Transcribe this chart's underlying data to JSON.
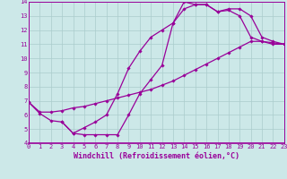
{
  "xlabel": "Windchill (Refroidissement éolien,°C)",
  "xlim": [
    0,
    23
  ],
  "ylim": [
    4,
    14
  ],
  "xticks": [
    0,
    1,
    2,
    3,
    4,
    5,
    6,
    7,
    8,
    9,
    10,
    11,
    12,
    13,
    14,
    15,
    16,
    17,
    18,
    19,
    20,
    21,
    22,
    23
  ],
  "yticks": [
    4,
    5,
    6,
    7,
    8,
    9,
    10,
    11,
    12,
    13,
    14
  ],
  "line_color": "#990099",
  "marker": "D",
  "markersize": 1.8,
  "linewidth": 0.9,
  "bg_color": "#cce8e8",
  "grid_color": "#aacccc",
  "tick_fontsize": 5.0,
  "xlabel_fontsize": 6.0,
  "lines": [
    {
      "x": [
        0,
        1,
        2,
        3,
        4,
        5,
        6,
        7,
        8,
        9,
        10,
        11,
        12,
        13,
        14,
        15,
        16,
        17,
        18,
        19,
        20,
        21,
        22,
        23
      ],
      "y": [
        6.9,
        6.1,
        5.6,
        5.5,
        4.7,
        4.6,
        4.6,
        4.6,
        4.6,
        6.0,
        7.5,
        8.5,
        9.5,
        12.5,
        14.0,
        13.8,
        13.8,
        13.3,
        13.4,
        13.0,
        11.5,
        11.2,
        11.0,
        11.0
      ]
    },
    {
      "x": [
        0,
        1,
        2,
        3,
        4,
        5,
        6,
        7,
        8,
        9,
        10,
        11,
        12,
        13,
        14,
        15,
        16,
        17,
        18,
        19,
        20,
        21,
        22,
        23
      ],
      "y": [
        6.9,
        6.2,
        6.2,
        6.3,
        6.5,
        6.6,
        6.8,
        7.0,
        7.2,
        7.4,
        7.6,
        7.8,
        8.1,
        8.4,
        8.8,
        9.2,
        9.6,
        10.0,
        10.4,
        10.8,
        11.2,
        11.2,
        11.1,
        11.0
      ]
    },
    {
      "x": [
        3,
        4,
        5,
        6,
        7,
        8,
        9,
        10,
        11,
        12,
        13,
        14,
        15,
        16,
        17,
        18,
        19,
        20,
        21,
        22,
        23
      ],
      "y": [
        5.5,
        4.7,
        5.1,
        5.5,
        6.0,
        7.5,
        9.3,
        10.5,
        11.5,
        12.0,
        12.5,
        13.5,
        13.8,
        13.8,
        13.3,
        13.5,
        13.5,
        13.0,
        11.5,
        11.2,
        11.0
      ]
    }
  ]
}
